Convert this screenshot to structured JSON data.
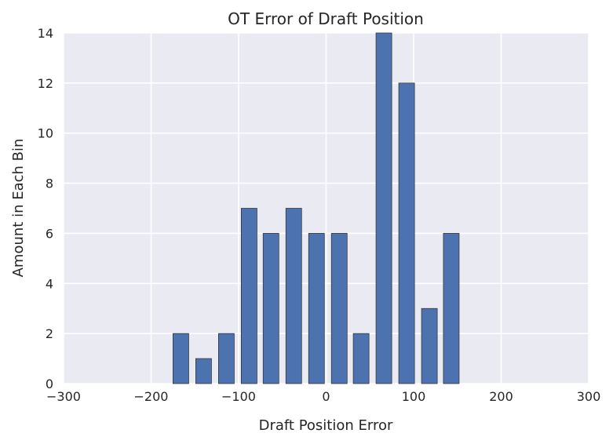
{
  "chart_data": {
    "type": "bar",
    "title": "OT Error of Draft Position",
    "xlabel": "Draft Position Error",
    "ylabel": "Amount in Each Bin",
    "xlim": [
      -300,
      300
    ],
    "ylim": [
      0,
      14
    ],
    "xticks": [
      -300,
      -200,
      -100,
      0,
      100,
      200,
      300
    ],
    "yticks": [
      0,
      2,
      4,
      6,
      8,
      10,
      12,
      14
    ],
    "xtick_labels": [
      "−300",
      "−200",
      "−100",
      "0",
      "100",
      "200",
      "300"
    ],
    "ytick_labels": [
      "0",
      "2",
      "4",
      "6",
      "8",
      "10",
      "12",
      "14"
    ],
    "bin_width": 18,
    "x": [
      -166,
      -140,
      -114,
      -88,
      -63,
      -37,
      -11,
      15,
      40,
      66,
      92,
      118,
      143
    ],
    "values": [
      2,
      1,
      2,
      7,
      6,
      7,
      6,
      6,
      2,
      14,
      12,
      3,
      6
    ],
    "grid": true,
    "colors": {
      "bar": "#4c72b0",
      "background": "#eaeaf2",
      "grid": "#ffffff"
    }
  }
}
